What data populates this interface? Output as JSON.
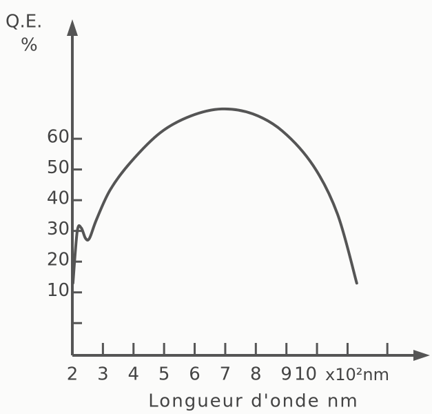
{
  "chart_data": {
    "type": "line",
    "y_label_top": "Q.E.",
    "y_label_unit": "%",
    "x_label": "Longueur d'onde nm",
    "x_unit": "x10²nm",
    "x": [
      2.02,
      2.16,
      2.29,
      2.43,
      2.56,
      2.79,
      3.24,
      3.91,
      4.88,
      5.87,
      6.89,
      7.9,
      8.87,
      9.88,
      10.67,
      11.3
    ],
    "values": [
      13,
      29.9,
      31,
      27.6,
      27.6,
      33.7,
      43.4,
      52.4,
      62,
      67.4,
      69.7,
      68.1,
      62.5,
      51.2,
      35.5,
      13
    ],
    "color": "#555555",
    "xlim": [
      2,
      13.4
    ],
    "ylim": [
      -10.5,
      96
    ],
    "xticks": [
      2,
      3,
      4,
      5,
      6,
      7,
      8,
      9,
      10
    ],
    "xticks_unlabeled": [
      11,
      12.3
    ],
    "yticks": [
      10,
      20,
      30,
      40,
      50,
      60
    ],
    "yticks_unlabeled": [
      0
    ]
  }
}
